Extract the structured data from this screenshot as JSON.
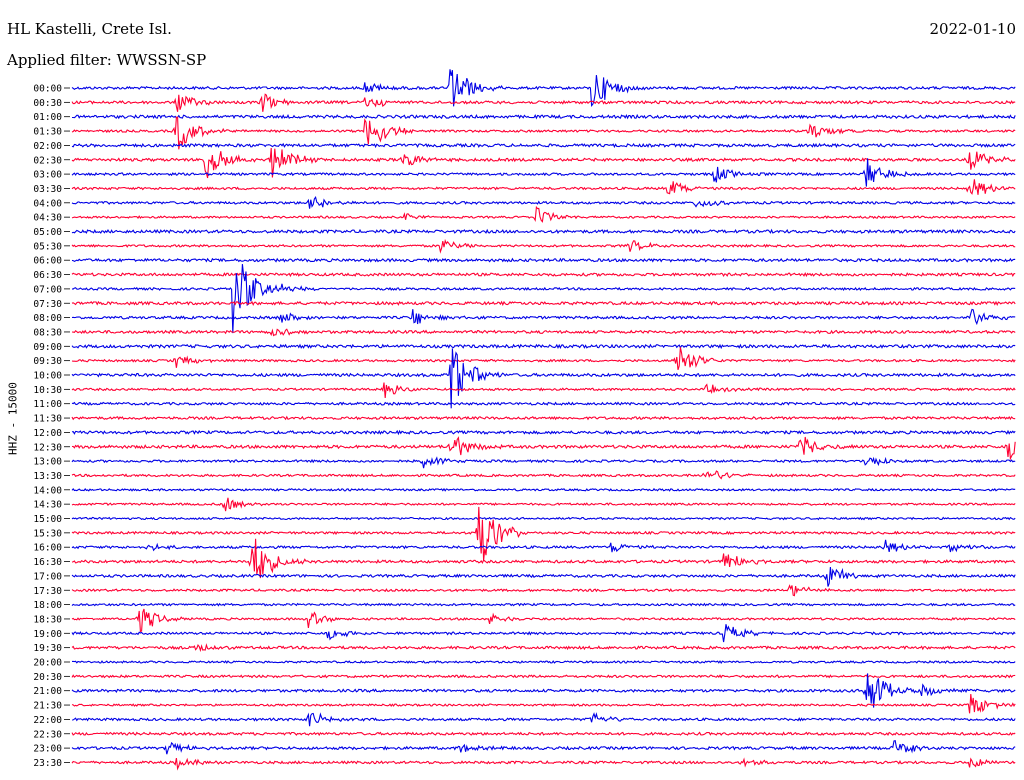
{
  "header": {
    "station": "HL Kastelli, Crete Isl.",
    "date": "2022-01-10",
    "filter_label": "Applied filter: WWSSN-SP"
  },
  "channel_label": "HHZ - 15000",
  "colors": {
    "trace_a": "#0000e6",
    "trace_b": "#ff0033",
    "background": "#ffffff"
  },
  "chart_data": {
    "type": "line",
    "title": "",
    "ylabel": "HHZ - 15000",
    "xlabel": "",
    "grid": false,
    "rows": [
      {
        "label": "00:00",
        "color": "blue"
      },
      {
        "label": "00:30",
        "color": "red"
      },
      {
        "label": "01:00",
        "color": "blue"
      },
      {
        "label": "01:30",
        "color": "red"
      },
      {
        "label": "02:00",
        "color": "blue"
      },
      {
        "label": "02:30",
        "color": "red"
      },
      {
        "label": "03:00",
        "color": "blue"
      },
      {
        "label": "03:30",
        "color": "red"
      },
      {
        "label": "04:00",
        "color": "blue"
      },
      {
        "label": "04:30",
        "color": "red"
      },
      {
        "label": "05:00",
        "color": "blue"
      },
      {
        "label": "05:30",
        "color": "red"
      },
      {
        "label": "06:00",
        "color": "blue"
      },
      {
        "label": "06:30",
        "color": "red"
      },
      {
        "label": "07:00",
        "color": "blue"
      },
      {
        "label": "07:30",
        "color": "red"
      },
      {
        "label": "08:00",
        "color": "blue"
      },
      {
        "label": "08:30",
        "color": "red"
      },
      {
        "label": "09:00",
        "color": "blue"
      },
      {
        "label": "09:30",
        "color": "red"
      },
      {
        "label": "10:00",
        "color": "blue"
      },
      {
        "label": "10:30",
        "color": "red"
      },
      {
        "label": "11:00",
        "color": "blue"
      },
      {
        "label": "11:30",
        "color": "red"
      },
      {
        "label": "12:00",
        "color": "blue"
      },
      {
        "label": "12:30",
        "color": "red"
      },
      {
        "label": "13:00",
        "color": "blue"
      },
      {
        "label": "13:30",
        "color": "red"
      },
      {
        "label": "14:00",
        "color": "blue"
      },
      {
        "label": "14:30",
        "color": "red"
      },
      {
        "label": "15:00",
        "color": "blue"
      },
      {
        "label": "15:30",
        "color": "red"
      },
      {
        "label": "16:00",
        "color": "blue"
      },
      {
        "label": "16:30",
        "color": "red"
      },
      {
        "label": "17:00",
        "color": "blue"
      },
      {
        "label": "17:30",
        "color": "red"
      },
      {
        "label": "18:00",
        "color": "blue"
      },
      {
        "label": "18:30",
        "color": "red"
      },
      {
        "label": "19:00",
        "color": "blue"
      },
      {
        "label": "19:30",
        "color": "red"
      },
      {
        "label": "20:00",
        "color": "blue"
      },
      {
        "label": "20:30",
        "color": "red"
      },
      {
        "label": "21:00",
        "color": "blue"
      },
      {
        "label": "21:30",
        "color": "red"
      },
      {
        "label": "22:00",
        "color": "blue"
      },
      {
        "label": "22:30",
        "color": "red"
      },
      {
        "label": "23:00",
        "color": "blue"
      },
      {
        "label": "23:30",
        "color": "red"
      }
    ],
    "events": [
      {
        "row": 0,
        "t": 0.4,
        "amp": 2.2
      },
      {
        "row": 0,
        "t": 0.55,
        "amp": 2.0
      },
      {
        "row": 0,
        "t": 0.31,
        "amp": 0.5
      },
      {
        "row": 1,
        "t": 0.11,
        "amp": 0.9
      },
      {
        "row": 1,
        "t": 0.2,
        "amp": 0.8
      },
      {
        "row": 1,
        "t": 0.31,
        "amp": 0.6
      },
      {
        "row": 3,
        "t": 0.11,
        "amp": 1.8
      },
      {
        "row": 3,
        "t": 0.31,
        "amp": 2.2
      },
      {
        "row": 3,
        "t": 0.78,
        "amp": 0.8
      },
      {
        "row": 5,
        "t": 0.14,
        "amp": 1.9
      },
      {
        "row": 5,
        "t": 0.21,
        "amp": 1.8
      },
      {
        "row": 5,
        "t": 0.35,
        "amp": 0.7
      },
      {
        "row": 5,
        "t": 0.95,
        "amp": 1.0
      },
      {
        "row": 6,
        "t": 0.84,
        "amp": 1.4
      },
      {
        "row": 6,
        "t": 0.68,
        "amp": 0.7
      },
      {
        "row": 7,
        "t": 0.63,
        "amp": 0.8
      },
      {
        "row": 7,
        "t": 0.95,
        "amp": 1.0
      },
      {
        "row": 8,
        "t": 0.25,
        "amp": 0.9
      },
      {
        "row": 8,
        "t": 0.66,
        "amp": 0.6
      },
      {
        "row": 9,
        "t": 0.49,
        "amp": 0.9
      },
      {
        "row": 9,
        "t": 0.35,
        "amp": 0.3
      },
      {
        "row": 11,
        "t": 0.39,
        "amp": 0.6
      },
      {
        "row": 11,
        "t": 0.59,
        "amp": 0.5
      },
      {
        "row": 14,
        "t": 0.17,
        "amp": 3.5
      },
      {
        "row": 14,
        "t": 0.22,
        "amp": 0.4
      },
      {
        "row": 16,
        "t": 0.22,
        "amp": 0.5
      },
      {
        "row": 16,
        "t": 0.36,
        "amp": 0.8
      },
      {
        "row": 16,
        "t": 0.95,
        "amp": 0.9
      },
      {
        "row": 17,
        "t": 0.21,
        "amp": 0.5
      },
      {
        "row": 19,
        "t": 0.11,
        "amp": 0.6
      },
      {
        "row": 19,
        "t": 0.64,
        "amp": 1.6
      },
      {
        "row": 20,
        "t": 0.4,
        "amp": 3.0
      },
      {
        "row": 21,
        "t": 0.33,
        "amp": 0.7
      },
      {
        "row": 21,
        "t": 0.67,
        "amp": 0.5
      },
      {
        "row": 25,
        "t": 0.4,
        "amp": 1.2
      },
      {
        "row": 25,
        "t": 0.77,
        "amp": 1.0
      },
      {
        "row": 25,
        "t": 0.99,
        "amp": 1.1
      },
      {
        "row": 26,
        "t": 0.37,
        "amp": 0.6
      },
      {
        "row": 26,
        "t": 0.84,
        "amp": 0.5
      },
      {
        "row": 27,
        "t": 0.67,
        "amp": 0.8
      },
      {
        "row": 29,
        "t": 0.16,
        "amp": 0.7
      },
      {
        "row": 31,
        "t": 0.43,
        "amp": 3.2
      },
      {
        "row": 32,
        "t": 0.08,
        "amp": 0.3
      },
      {
        "row": 32,
        "t": 0.57,
        "amp": 0.5
      },
      {
        "row": 32,
        "t": 0.86,
        "amp": 0.6
      },
      {
        "row": 32,
        "t": 0.93,
        "amp": 0.4
      },
      {
        "row": 33,
        "t": 0.19,
        "amp": 2.6
      },
      {
        "row": 33,
        "t": 0.69,
        "amp": 0.9
      },
      {
        "row": 34,
        "t": 0.8,
        "amp": 1.0
      },
      {
        "row": 35,
        "t": 0.76,
        "amp": 0.6
      },
      {
        "row": 37,
        "t": 0.07,
        "amp": 1.3
      },
      {
        "row": 37,
        "t": 0.25,
        "amp": 0.7
      },
      {
        "row": 37,
        "t": 0.44,
        "amp": 0.6
      },
      {
        "row": 38,
        "t": 0.27,
        "amp": 0.5
      },
      {
        "row": 38,
        "t": 0.69,
        "amp": 0.8
      },
      {
        "row": 39,
        "t": 0.13,
        "amp": 0.4
      },
      {
        "row": 42,
        "t": 0.84,
        "amp": 2.4
      },
      {
        "row": 42,
        "t": 0.9,
        "amp": 0.5
      },
      {
        "row": 43,
        "t": 0.95,
        "amp": 1.1
      },
      {
        "row": 44,
        "t": 0.25,
        "amp": 0.7
      },
      {
        "row": 44,
        "t": 0.55,
        "amp": 0.6
      },
      {
        "row": 46,
        "t": 0.1,
        "amp": 0.6
      },
      {
        "row": 46,
        "t": 0.41,
        "amp": 0.4
      },
      {
        "row": 46,
        "t": 0.87,
        "amp": 0.7
      },
      {
        "row": 47,
        "t": 0.11,
        "amp": 0.5
      },
      {
        "row": 47,
        "t": 0.71,
        "amp": 0.4
      },
      {
        "row": 47,
        "t": 0.95,
        "amp": 0.5
      }
    ]
  }
}
